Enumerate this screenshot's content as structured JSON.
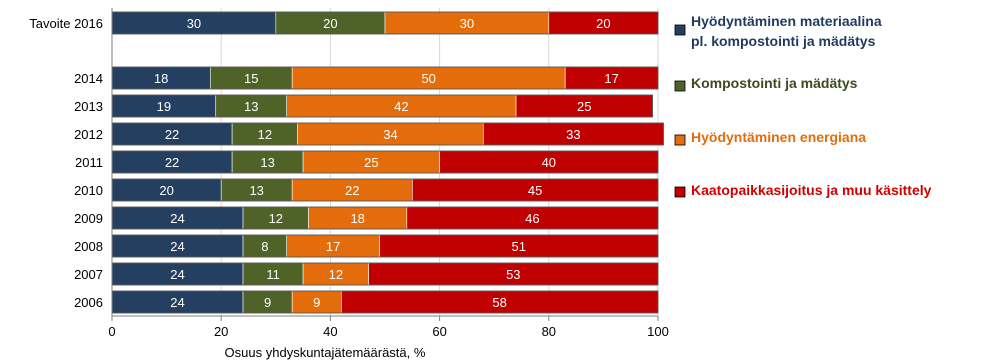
{
  "chart_data": {
    "type": "bar",
    "orientation": "horizontal",
    "stacked": true,
    "categories": [
      "Tavoite 2016",
      "2014",
      "2013",
      "2012",
      "2011",
      "2010",
      "2009",
      "2008",
      "2007",
      "2006"
    ],
    "series": [
      {
        "name": "Hyödyntäminen materiaalina pl. kompostointi ja mädätys",
        "name_lines": [
          "Hyödyntäminen materiaalina",
          "pl. kompostointi ja mädätys"
        ],
        "color": "#243F60",
        "legend_color": "#1F3A5F",
        "values": [
          30,
          18,
          19,
          22,
          22,
          20,
          24,
          24,
          24,
          24
        ]
      },
      {
        "name": "Kompostointi ja mädätys",
        "name_lines": [
          "Kompostointi ja mädätys"
        ],
        "color": "#4F6228",
        "legend_color": "#3C4A1E",
        "values": [
          20,
          15,
          13,
          12,
          13,
          13,
          12,
          8,
          11,
          9
        ]
      },
      {
        "name": "Hyödyntäminen energiana",
        "name_lines": [
          "Hyödyntäminen energiana"
        ],
        "color": "#E46C0A",
        "legend_color": "#E46C0A",
        "values": [
          30,
          50,
          42,
          34,
          25,
          22,
          18,
          17,
          12,
          9
        ]
      },
      {
        "name": "Kaatopaikkasijoitus ja muu käsittely",
        "name_lines": [
          "Kaatopaikkasijoitus ja muu käsittely"
        ],
        "color": "#C00000",
        "legend_color": "#D00000",
        "values": [
          20,
          17,
          25,
          33,
          40,
          45,
          46,
          51,
          53,
          58
        ]
      }
    ],
    "xlabel": "Osuus yhdyskuntajätemäärästä, %",
    "xlim": [
      0,
      100
    ],
    "xticks": [
      0,
      20,
      40,
      60,
      80,
      100
    ],
    "grid": true,
    "legend_position": "right"
  }
}
